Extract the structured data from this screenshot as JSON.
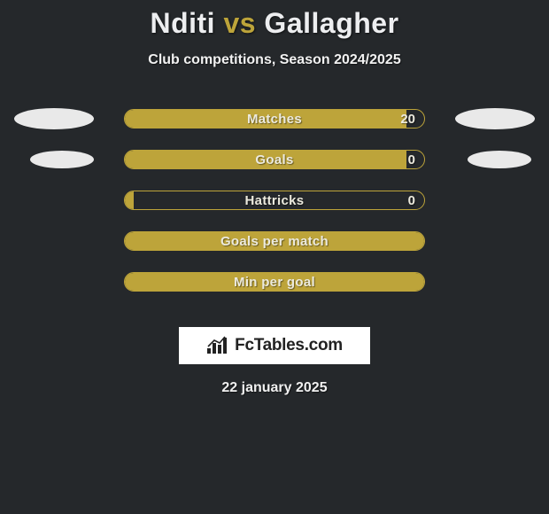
{
  "title": {
    "player1": "Nditi",
    "vs": "vs",
    "player2": "Gallagher",
    "accent_color": "#bda43a",
    "fontsize": 32
  },
  "subtitle": "Club competitions, Season 2024/2025",
  "stats": {
    "background_color": "#25282b",
    "pill_border_color": "#bda43a",
    "pill_fill_color": "#bda43a",
    "text_color": "#eceade",
    "rows": [
      {
        "label": "Matches",
        "value": "20",
        "fill_pct": 94,
        "show_value": true,
        "ellipse_left": "large",
        "ellipse_right": "large"
      },
      {
        "label": "Goals",
        "value": "0",
        "fill_pct": 94,
        "show_value": true,
        "ellipse_left": "small",
        "ellipse_right": "small"
      },
      {
        "label": "Hattricks",
        "value": "0",
        "fill_pct": 3,
        "show_value": true,
        "ellipse_left": null,
        "ellipse_right": null
      },
      {
        "label": "Goals per match",
        "value": "",
        "fill_pct": 100,
        "show_value": false,
        "ellipse_left": null,
        "ellipse_right": null
      },
      {
        "label": "Min per goal",
        "value": "",
        "fill_pct": 100,
        "show_value": false,
        "ellipse_left": null,
        "ellipse_right": null
      }
    ]
  },
  "branding": {
    "text": "FcTables.com",
    "icon_name": "bars-icon",
    "background_color": "#ffffff",
    "text_color": "#222222"
  },
  "date": "22 january 2025"
}
